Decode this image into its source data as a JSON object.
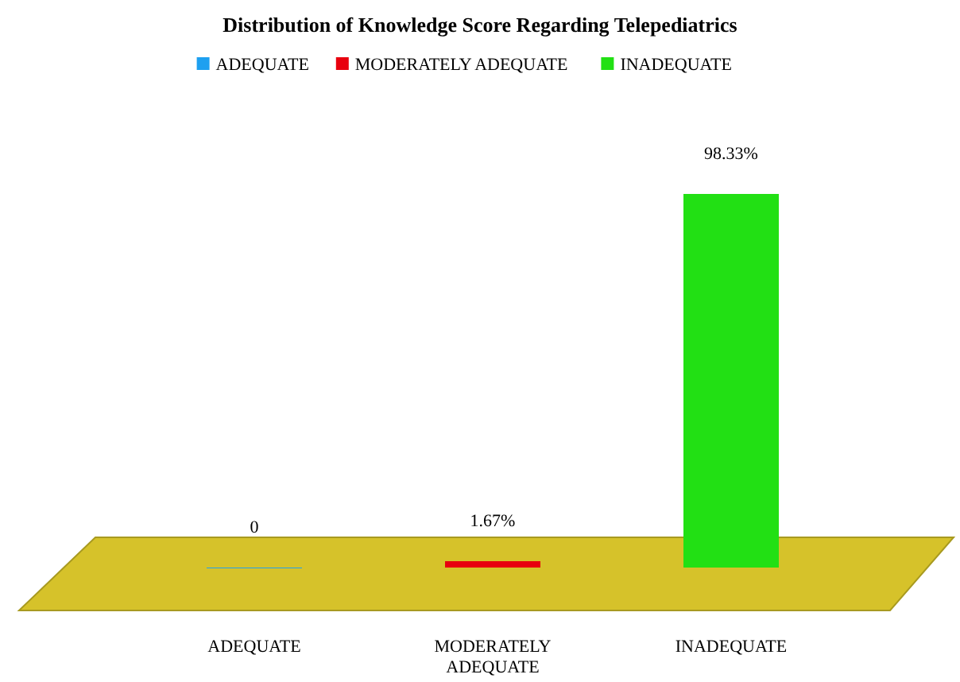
{
  "chart_data": {
    "type": "bar",
    "title": "Distribution of Knowledge Score Regarding Telepediatrics",
    "categories": [
      "ADEQUATE",
      "MODERATELY ADEQUATE",
      "INADEQUATE"
    ],
    "series": [
      {
        "name": "ADEQUATE",
        "color": "#1ea0f0",
        "values": [
          0,
          null,
          null
        ],
        "value_labels": [
          "0",
          null,
          null
        ]
      },
      {
        "name": "MODERATELY ADEQUATE",
        "color": "#e8000e",
        "values": [
          null,
          1.67,
          null
        ],
        "value_labels": [
          null,
          "1.67%",
          null
        ]
      },
      {
        "name": "INADEQUATE",
        "color": "#22e014",
        "values": [
          null,
          null,
          98.33
        ],
        "value_labels": [
          null,
          null,
          "98.33%"
        ]
      }
    ],
    "legend": "top"
  }
}
